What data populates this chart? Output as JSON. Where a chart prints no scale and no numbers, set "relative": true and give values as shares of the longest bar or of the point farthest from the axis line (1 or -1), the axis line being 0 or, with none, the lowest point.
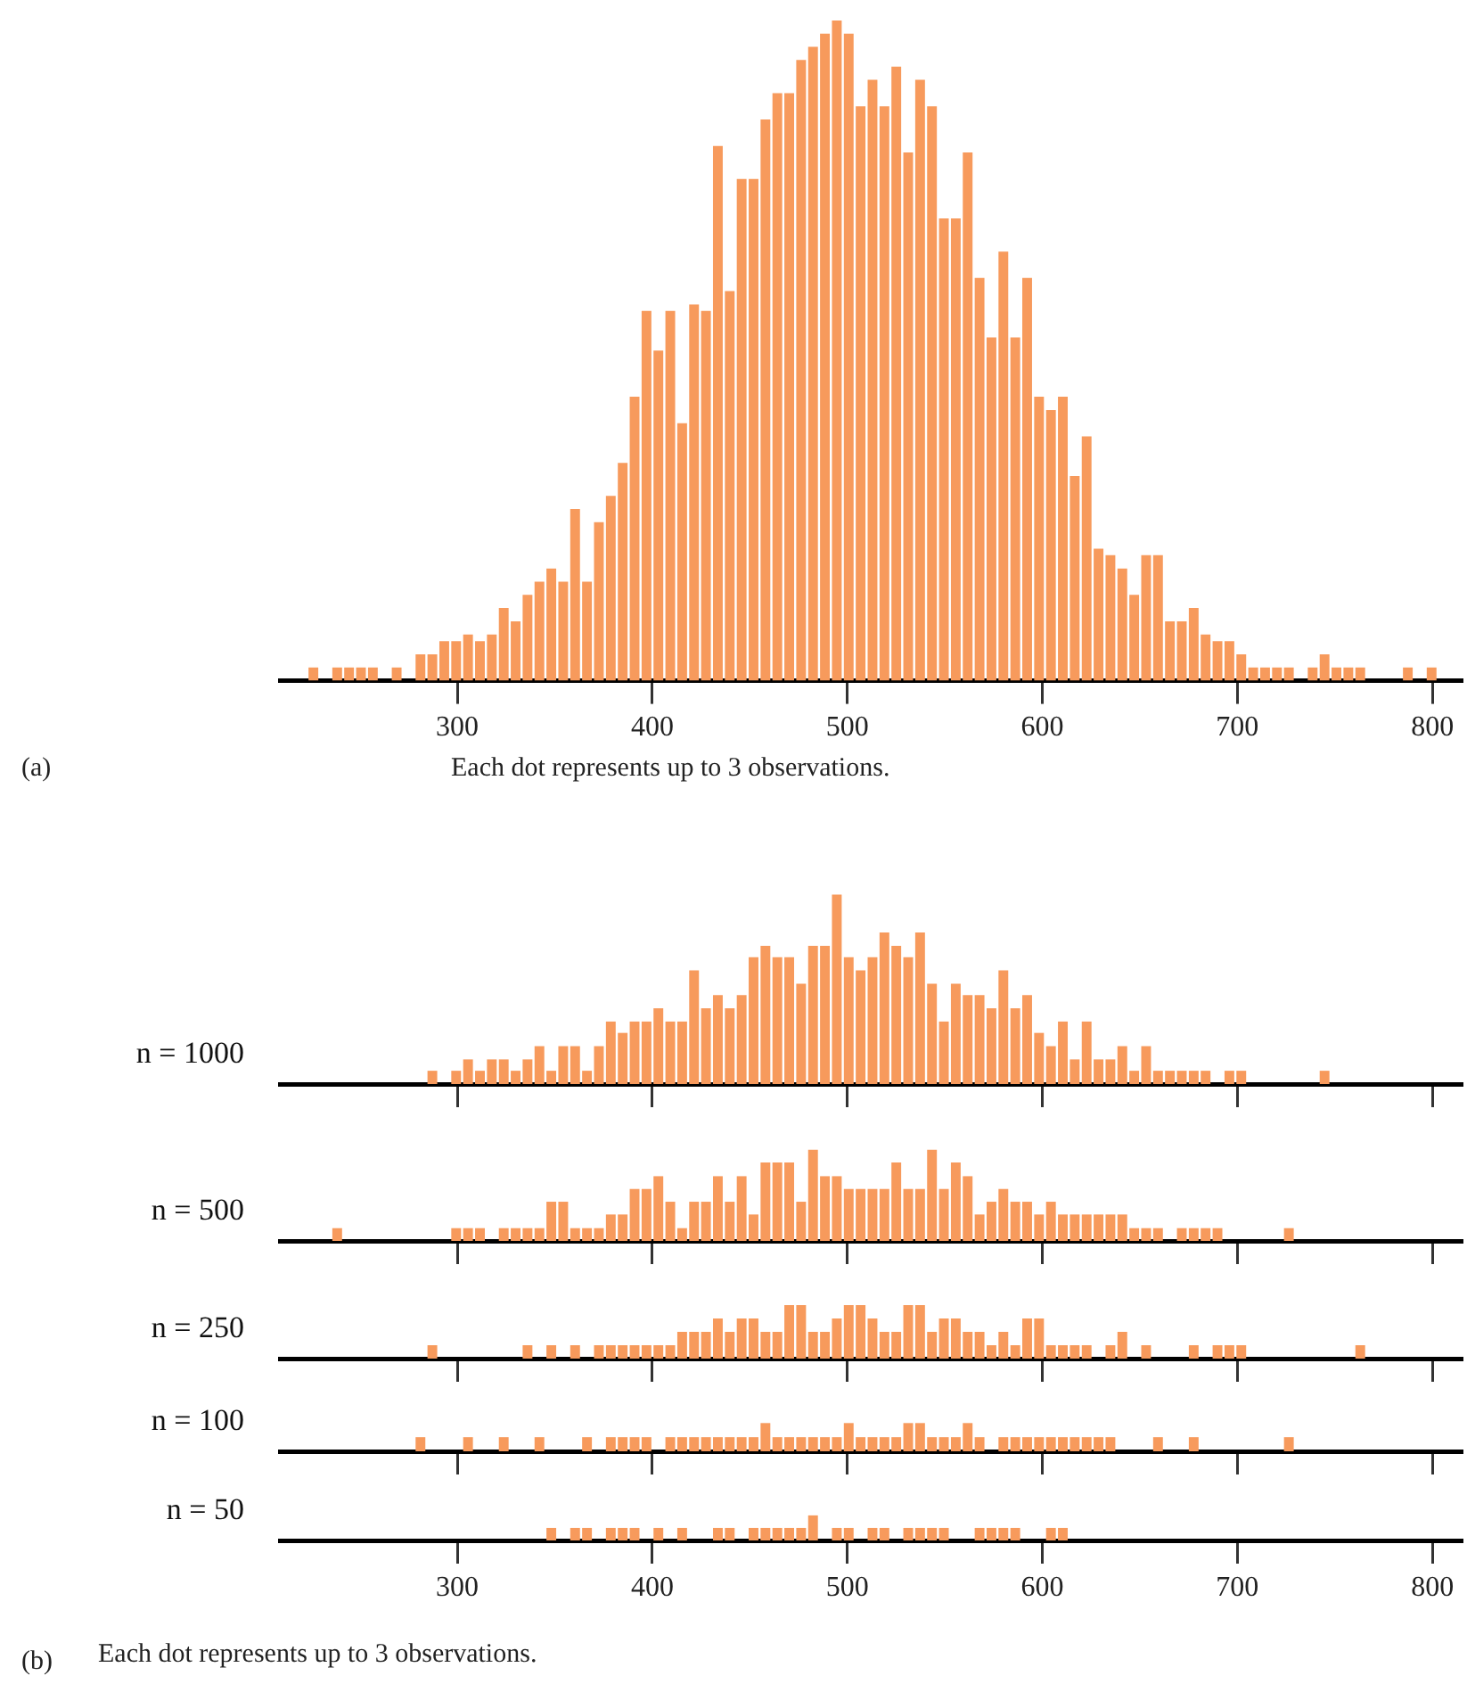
{
  "chart_data": [
    {
      "type": "bar",
      "relative": true,
      "color": "#f79a5c",
      "xlim": [
        209,
        815
      ],
      "xticks": [
        300,
        400,
        500,
        600,
        700,
        800
      ],
      "tick_labels": "x",
      "grid": false,
      "annotations": [
        "(a)",
        "Each dot represents up to 3 observations."
      ],
      "x": [
        226.2,
        232.3,
        238.4,
        244.5,
        250.6,
        256.7,
        262.8,
        268.9,
        275.0,
        281.1,
        287.2,
        293.3,
        299.4,
        305.5,
        311.6,
        317.7,
        323.8,
        329.9,
        336.0,
        342.1,
        348.2,
        354.3,
        360.4,
        366.5,
        372.6,
        378.7,
        384.8,
        390.9,
        397.0,
        403.1,
        409.2,
        415.3,
        421.4,
        427.5,
        433.6,
        439.7,
        445.8,
        451.9,
        458.0,
        464.1,
        470.2,
        476.3,
        482.4,
        488.5,
        494.6,
        500.7,
        506.8,
        512.9,
        519.0,
        525.1,
        531.2,
        537.3,
        543.4,
        549.5,
        555.6,
        561.7,
        567.8,
        573.9,
        580.0,
        586.1,
        592.2,
        598.3,
        604.4,
        610.5,
        616.6,
        622.7,
        628.8,
        634.9,
        641.0,
        647.1,
        653.2,
        659.3,
        665.4,
        671.5,
        677.6,
        683.7,
        689.8,
        695.9,
        702.0,
        708.1,
        714.2,
        720.3,
        726.4,
        732.5,
        738.6,
        744.7,
        750.8,
        756.9,
        763.0,
        769.1,
        775.2,
        781.3,
        787.4,
        793.5,
        799.6
      ],
      "values": [
        0.02,
        0,
        0.02,
        0.02,
        0.02,
        0.02,
        0,
        0.02,
        0,
        0.04,
        0.04,
        0.06,
        0.06,
        0.07,
        0.06,
        0.07,
        0.11,
        0.09,
        0.13,
        0.15,
        0.17,
        0.15,
        0.26,
        0.15,
        0.24,
        0.28,
        0.33,
        0.43,
        0.56,
        0.5,
        0.56,
        0.39,
        0.57,
        0.56,
        0.81,
        0.59,
        0.76,
        0.76,
        0.85,
        0.89,
        0.89,
        0.94,
        0.96,
        0.98,
        1,
        0.98,
        0.87,
        0.91,
        0.87,
        0.93,
        0.8,
        0.91,
        0.87,
        0.7,
        0.7,
        0.8,
        0.61,
        0.52,
        0.65,
        0.52,
        0.61,
        0.43,
        0.41,
        0.43,
        0.31,
        0.37,
        0.2,
        0.19,
        0.17,
        0.13,
        0.19,
        0.19,
        0.09,
        0.09,
        0.11,
        0.07,
        0.06,
        0.06,
        0.04,
        0.02,
        0.02,
        0.02,
        0.02,
        0,
        0.02,
        0.04,
        0.02,
        0.02,
        0.02,
        0,
        0,
        0,
        0.02,
        0,
        0.02
      ]
    },
    {
      "type": "bar",
      "relative": true,
      "title": "n = 1000",
      "color": "#f79a5c",
      "xlim": [
        209,
        815
      ],
      "xticks": [
        300,
        400,
        500,
        600,
        700,
        800
      ],
      "tick_labels": false,
      "grid": false,
      "x": [
        226.2,
        232.3,
        238.4,
        244.5,
        250.6,
        256.7,
        262.8,
        268.9,
        275.0,
        281.1,
        287.2,
        293.3,
        299.4,
        305.5,
        311.6,
        317.7,
        323.8,
        329.9,
        336.0,
        342.1,
        348.2,
        354.3,
        360.4,
        366.5,
        372.6,
        378.7,
        384.8,
        390.9,
        397.0,
        403.1,
        409.2,
        415.3,
        421.4,
        427.5,
        433.6,
        439.7,
        445.8,
        451.9,
        458.0,
        464.1,
        470.2,
        476.3,
        482.4,
        488.5,
        494.6,
        500.7,
        506.8,
        512.9,
        519.0,
        525.1,
        531.2,
        537.3,
        543.4,
        549.5,
        555.6,
        561.7,
        567.8,
        573.9,
        580.0,
        586.1,
        592.2,
        598.3,
        604.4,
        610.5,
        616.6,
        622.7,
        628.8,
        634.9,
        641.0,
        647.1,
        653.2,
        659.3,
        665.4,
        671.5,
        677.6,
        683.7,
        689.8,
        695.9,
        702.0,
        708.1,
        714.2,
        720.3,
        726.4,
        732.5,
        738.6,
        744.7,
        750.8,
        756.9,
        763.0,
        769.1,
        775.2,
        781.3,
        787.4,
        793.5,
        799.6
      ],
      "values": [
        0,
        0,
        0,
        0,
        0,
        0,
        0,
        0,
        0,
        0,
        0.07,
        0,
        0.07,
        0.13,
        0.07,
        0.13,
        0.13,
        0.07,
        0.13,
        0.2,
        0.07,
        0.2,
        0.2,
        0.07,
        0.2,
        0.33,
        0.27,
        0.33,
        0.33,
        0.4,
        0.33,
        0.33,
        0.6,
        0.4,
        0.47,
        0.4,
        0.47,
        0.67,
        0.73,
        0.67,
        0.67,
        0.53,
        0.73,
        0.73,
        1,
        0.67,
        0.6,
        0.67,
        0.8,
        0.73,
        0.67,
        0.8,
        0.53,
        0.33,
        0.53,
        0.47,
        0.47,
        0.4,
        0.6,
        0.4,
        0.47,
        0.27,
        0.2,
        0.33,
        0.13,
        0.33,
        0.13,
        0.13,
        0.2,
        0.07,
        0.2,
        0.07,
        0.07,
        0.07,
        0.07,
        0.07,
        0,
        0.07,
        0.07,
        0,
        0,
        0,
        0,
        0,
        0,
        0.07,
        0,
        0,
        0,
        0,
        0,
        0,
        0,
        0,
        0
      ]
    },
    {
      "type": "bar",
      "relative": true,
      "title": "n = 500",
      "color": "#f79a5c",
      "xlim": [
        209,
        815
      ],
      "xticks": [
        300,
        400,
        500,
        600,
        700,
        800
      ],
      "tick_labels": false,
      "grid": false,
      "x": [
        226.2,
        232.3,
        238.4,
        244.5,
        250.6,
        256.7,
        262.8,
        268.9,
        275.0,
        281.1,
        287.2,
        293.3,
        299.4,
        305.5,
        311.6,
        317.7,
        323.8,
        329.9,
        336.0,
        342.1,
        348.2,
        354.3,
        360.4,
        366.5,
        372.6,
        378.7,
        384.8,
        390.9,
        397.0,
        403.1,
        409.2,
        415.3,
        421.4,
        427.5,
        433.6,
        439.7,
        445.8,
        451.9,
        458.0,
        464.1,
        470.2,
        476.3,
        482.4,
        488.5,
        494.6,
        500.7,
        506.8,
        512.9,
        519.0,
        525.1,
        531.2,
        537.3,
        543.4,
        549.5,
        555.6,
        561.7,
        567.8,
        573.9,
        580.0,
        586.1,
        592.2,
        598.3,
        604.4,
        610.5,
        616.6,
        622.7,
        628.8,
        634.9,
        641.0,
        647.1,
        653.2,
        659.3,
        665.4,
        671.5,
        677.6,
        683.7,
        689.8,
        695.9,
        702.0,
        708.1,
        714.2,
        720.3,
        726.4,
        732.5,
        738.6,
        744.7,
        750.8,
        756.9,
        763.0,
        769.1,
        775.2,
        781.3,
        787.4,
        793.5,
        799.6
      ],
      "values": [
        0,
        0,
        0.14,
        0,
        0,
        0,
        0,
        0,
        0,
        0,
        0,
        0,
        0.14,
        0.14,
        0.14,
        0,
        0.14,
        0.14,
        0.14,
        0.14,
        0.43,
        0.43,
        0.14,
        0.14,
        0.14,
        0.29,
        0.29,
        0.57,
        0.57,
        0.71,
        0.43,
        0.14,
        0.43,
        0.43,
        0.71,
        0.43,
        0.71,
        0.29,
        0.86,
        0.86,
        0.86,
        0.43,
        1,
        0.71,
        0.71,
        0.57,
        0.57,
        0.57,
        0.57,
        0.86,
        0.57,
        0.57,
        1,
        0.57,
        0.86,
        0.71,
        0.29,
        0.43,
        0.57,
        0.43,
        0.43,
        0.29,
        0.43,
        0.29,
        0.29,
        0.29,
        0.29,
        0.29,
        0.29,
        0.14,
        0.14,
        0.14,
        0,
        0.14,
        0.14,
        0.14,
        0.14,
        0,
        0,
        0,
        0,
        0,
        0.14,
        0,
        0,
        0,
        0,
        0,
        0,
        0,
        0,
        0,
        0,
        0,
        0
      ]
    },
    {
      "type": "bar",
      "relative": true,
      "title": "n = 250",
      "color": "#f79a5c",
      "xlim": [
        209,
        815
      ],
      "xticks": [
        300,
        400,
        500,
        600,
        700,
        800
      ],
      "tick_labels": false,
      "grid": false,
      "x": [
        226.2,
        232.3,
        238.4,
        244.5,
        250.6,
        256.7,
        262.8,
        268.9,
        275.0,
        281.1,
        287.2,
        293.3,
        299.4,
        305.5,
        311.6,
        317.7,
        323.8,
        329.9,
        336.0,
        342.1,
        348.2,
        354.3,
        360.4,
        366.5,
        372.6,
        378.7,
        384.8,
        390.9,
        397.0,
        403.1,
        409.2,
        415.3,
        421.4,
        427.5,
        433.6,
        439.7,
        445.8,
        451.9,
        458.0,
        464.1,
        470.2,
        476.3,
        482.4,
        488.5,
        494.6,
        500.7,
        506.8,
        512.9,
        519.0,
        525.1,
        531.2,
        537.3,
        543.4,
        549.5,
        555.6,
        561.7,
        567.8,
        573.9,
        580.0,
        586.1,
        592.2,
        598.3,
        604.4,
        610.5,
        616.6,
        622.7,
        628.8,
        634.9,
        641.0,
        647.1,
        653.2,
        659.3,
        665.4,
        671.5,
        677.6,
        683.7,
        689.8,
        695.9,
        702.0,
        708.1,
        714.2,
        720.3,
        726.4,
        732.5,
        738.6,
        744.7,
        750.8,
        756.9,
        763.0,
        769.1,
        775.2,
        781.3,
        787.4,
        793.5,
        799.6
      ],
      "values": [
        0,
        0,
        0,
        0,
        0,
        0,
        0,
        0,
        0,
        0,
        0.25,
        0,
        0,
        0,
        0,
        0,
        0,
        0,
        0.25,
        0,
        0.25,
        0,
        0.25,
        0,
        0.25,
        0.25,
        0.25,
        0.25,
        0.25,
        0.25,
        0.25,
        0.5,
        0.5,
        0.5,
        0.75,
        0.5,
        0.75,
        0.75,
        0.5,
        0.5,
        1,
        1,
        0.5,
        0.5,
        0.75,
        1,
        1,
        0.75,
        0.5,
        0.5,
        1,
        1,
        0.5,
        0.75,
        0.75,
        0.5,
        0.5,
        0.25,
        0.5,
        0.25,
        0.75,
        0.75,
        0.25,
        0.25,
        0.25,
        0.25,
        0,
        0.25,
        0.5,
        0,
        0.25,
        0,
        0,
        0,
        0.25,
        0,
        0.25,
        0.25,
        0.25,
        0,
        0,
        0,
        0,
        0,
        0,
        0,
        0,
        0,
        0.25,
        0,
        0,
        0,
        0,
        0,
        0
      ]
    },
    {
      "type": "bar",
      "relative": true,
      "title": "n = 100",
      "color": "#f79a5c",
      "xlim": [
        209,
        815
      ],
      "xticks": [
        300,
        400,
        500,
        600,
        700,
        800
      ],
      "tick_labels": false,
      "grid": false,
      "x": [
        226.2,
        232.3,
        238.4,
        244.5,
        250.6,
        256.7,
        262.8,
        268.9,
        275.0,
        281.1,
        287.2,
        293.3,
        299.4,
        305.5,
        311.6,
        317.7,
        323.8,
        329.9,
        336.0,
        342.1,
        348.2,
        354.3,
        360.4,
        366.5,
        372.6,
        378.7,
        384.8,
        390.9,
        397.0,
        403.1,
        409.2,
        415.3,
        421.4,
        427.5,
        433.6,
        439.7,
        445.8,
        451.9,
        458.0,
        464.1,
        470.2,
        476.3,
        482.4,
        488.5,
        494.6,
        500.7,
        506.8,
        512.9,
        519.0,
        525.1,
        531.2,
        537.3,
        543.4,
        549.5,
        555.6,
        561.7,
        567.8,
        573.9,
        580.0,
        586.1,
        592.2,
        598.3,
        604.4,
        610.5,
        616.6,
        622.7,
        628.8,
        634.9,
        641.0,
        647.1,
        653.2,
        659.3,
        665.4,
        671.5,
        677.6,
        683.7,
        689.8,
        695.9,
        702.0,
        708.1,
        714.2,
        720.3,
        726.4,
        732.5,
        738.6,
        744.7,
        750.8,
        756.9,
        763.0,
        769.1,
        775.2,
        781.3,
        787.4,
        793.5,
        799.6
      ],
      "values": [
        0,
        0,
        0,
        0,
        0,
        0,
        0,
        0,
        0,
        0.5,
        0,
        0,
        0,
        0.5,
        0,
        0,
        0.5,
        0,
        0,
        0.5,
        0,
        0,
        0,
        0.5,
        0,
        0.5,
        0.5,
        0.5,
        0.5,
        0,
        0.5,
        0.5,
        0.5,
        0.5,
        0.5,
        0.5,
        0.5,
        0.5,
        1,
        0.5,
        0.5,
        0.5,
        0.5,
        0.5,
        0.5,
        1,
        0.5,
        0.5,
        0.5,
        0.5,
        1,
        1,
        0.5,
        0.5,
        0.5,
        1,
        0.5,
        0,
        0.5,
        0.5,
        0.5,
        0.5,
        0.5,
        0.5,
        0.5,
        0.5,
        0.5,
        0.5,
        0,
        0,
        0,
        0.5,
        0,
        0,
        0.5,
        0,
        0,
        0,
        0,
        0,
        0,
        0,
        0.5,
        0,
        0,
        0,
        0,
        0,
        0,
        0,
        0,
        0,
        0,
        0,
        0
      ]
    },
    {
      "type": "bar",
      "relative": true,
      "title": "n = 50",
      "color": "#f79a5c",
      "xlim": [
        209,
        815
      ],
      "xticks": [
        300,
        400,
        500,
        600,
        700,
        800
      ],
      "tick_labels": "x",
      "grid": false,
      "annotations": [
        "(b)",
        "Each dot represents up to 3 observations."
      ],
      "x": [
        348.2,
        360.4,
        366.5,
        378.7,
        384.8,
        390.9,
        403.1,
        415.3,
        433.6,
        439.7,
        451.9,
        458.0,
        464.1,
        470.2,
        476.3,
        482.4,
        494.6,
        500.7,
        512.9,
        519.0,
        531.2,
        537.3,
        543.4,
        549.5,
        567.8,
        573.9,
        580.0,
        586.1,
        604.4,
        610.5
      ],
      "values": [
        0.5,
        0.5,
        0.5,
        0.5,
        0.5,
        0.5,
        0.5,
        0.5,
        0.5,
        0.5,
        0.5,
        0.5,
        0.5,
        0.5,
        0.5,
        1,
        0.5,
        0.5,
        0.5,
        0.5,
        0.5,
        0.5,
        0.5,
        0.5,
        0.5,
        0.5,
        0.5,
        0.5,
        0.5,
        0.5
      ]
    }
  ]
}
